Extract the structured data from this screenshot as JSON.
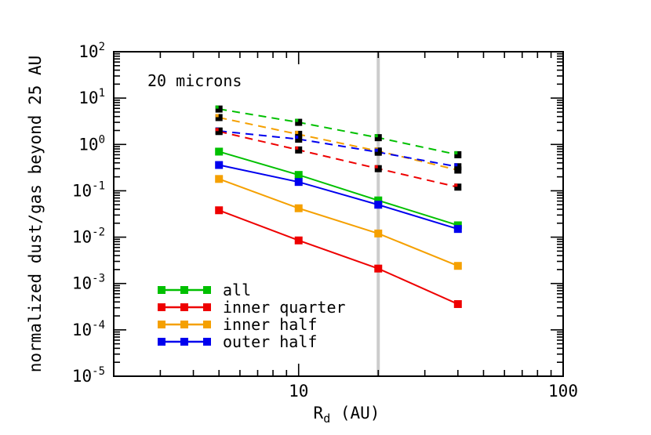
{
  "chart_data": {
    "type": "line",
    "title": "",
    "annotation": "20 microns",
    "xlabel": {
      "base": "R",
      "sub": "d",
      "rest": " (AU)"
    },
    "ylabel": "normalized dust/gas beyond 25 AU",
    "xscale": "log",
    "yscale": "log",
    "xlim": [
      2,
      100
    ],
    "ylim": [
      1e-05,
      100
    ],
    "x_ticks": [
      {
        "value": 10,
        "label": "10"
      },
      {
        "value": 100,
        "label": "100"
      }
    ],
    "y_ticks": [
      {
        "value": 100,
        "base": "10",
        "exp": "2"
      },
      {
        "value": 10,
        "base": "10",
        "exp": "1"
      },
      {
        "value": 1,
        "base": "10",
        "exp": "0"
      },
      {
        "value": 0.1,
        "base": "10",
        "exp": "-1"
      },
      {
        "value": 0.01,
        "base": "10",
        "exp": "-2"
      },
      {
        "value": 0.001,
        "base": "10",
        "exp": "-3"
      },
      {
        "value": 0.0001,
        "base": "10",
        "exp": "-4"
      },
      {
        "value": 1e-05,
        "base": "10",
        "exp": "-5"
      }
    ],
    "vertical_line": {
      "x": 20,
      "color": "#cccccc"
    },
    "x": [
      5,
      10,
      20,
      40
    ],
    "series": [
      {
        "name": "all",
        "color": "#00c000",
        "style": "solid",
        "values": [
          0.7,
          0.22,
          0.062,
          0.018
        ]
      },
      {
        "name": "inner quarter",
        "color": "#ee0000",
        "style": "solid",
        "values": [
          0.038,
          0.0085,
          0.0021,
          0.00036
        ]
      },
      {
        "name": "inner half",
        "color": "#f5a000",
        "style": "solid",
        "values": [
          0.18,
          0.042,
          0.012,
          0.0024
        ]
      },
      {
        "name": "outer half",
        "color": "#0000ee",
        "style": "solid",
        "values": [
          0.36,
          0.155,
          0.05,
          0.015
        ]
      },
      {
        "name": "all (dashed)",
        "color": "#00c000",
        "style": "dashed",
        "values": [
          5.8,
          3.0,
          1.4,
          0.6
        ]
      },
      {
        "name": "inner half (dashed)",
        "color": "#f5a000",
        "style": "dashed",
        "values": [
          3.8,
          1.65,
          0.72,
          0.28
        ]
      },
      {
        "name": "outer half (dashed)",
        "color": "#0000ee",
        "style": "dashed",
        "values": [
          1.95,
          1.3,
          0.68,
          0.33
        ]
      },
      {
        "name": "inner quarter (dashed)",
        "color": "#ee0000",
        "style": "dashed",
        "values": [
          1.9,
          0.76,
          0.3,
          0.12
        ]
      }
    ],
    "legend": {
      "placement": "bottom-left",
      "entries": [
        {
          "label": "all",
          "color": "#00c000"
        },
        {
          "label": "inner quarter",
          "color": "#ee0000"
        },
        {
          "label": "inner half",
          "color": "#f5a000"
        },
        {
          "label": "outer half",
          "color": "#0000ee"
        }
      ]
    }
  }
}
